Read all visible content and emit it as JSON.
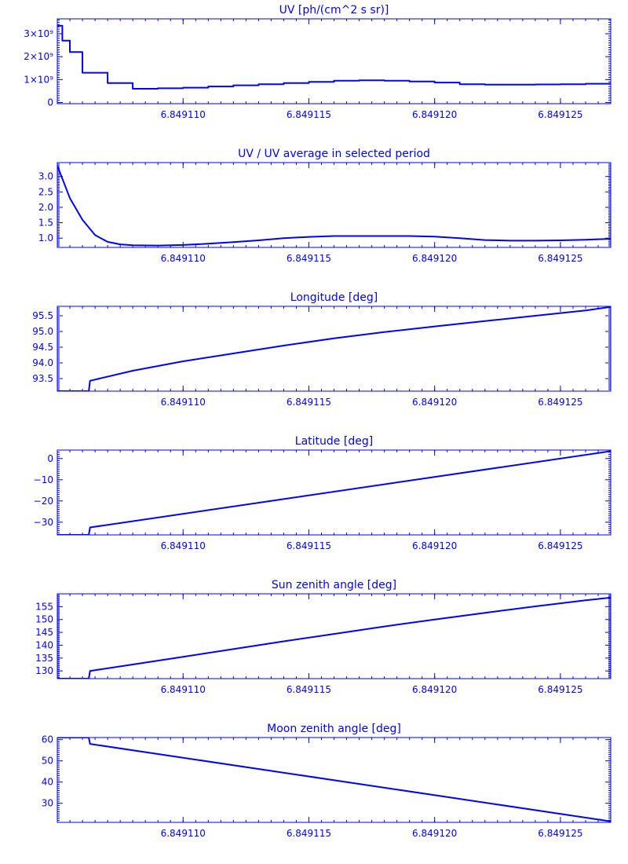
{
  "colors": {
    "line": "#0000ff",
    "background": "#ffffff"
  },
  "chart_data": [
    {
      "type": "line",
      "title": "UV [ph/(cm^2 s sr)]",
      "xlabel": "",
      "ylabel": "",
      "xlim": [
        6.849105,
        6.849127
      ],
      "ylim": [
        -50000000,
        3650000000
      ],
      "x_ticks": [
        6.84911,
        6.849115,
        6.84912,
        6.849125
      ],
      "x_tick_labels": [
        "6.849110",
        "6.849115",
        "6.849120",
        "6.849125"
      ],
      "y_ticks": [
        0,
        1000000000,
        2000000000,
        3000000000
      ],
      "y_tick_labels": [
        "0",
        "1×10⁹",
        "2×10⁹",
        "3×10⁹"
      ],
      "step": true,
      "grid": false,
      "series": [
        {
          "x": [
            6.849105,
            6.8491052,
            6.8491055,
            6.849106,
            6.849107,
            6.849108,
            6.849109,
            6.84911,
            6.849111,
            6.849112,
            6.849113,
            6.849114,
            6.849115,
            6.849116,
            6.849117,
            6.849118,
            6.849119,
            6.84912,
            6.849121,
            6.849122,
            6.849123,
            6.849124,
            6.849125,
            6.849126,
            6.849127
          ],
          "y": [
            3350000000,
            2700000000,
            2200000000,
            1300000000,
            850000000,
            600000000,
            620000000,
            650000000,
            700000000,
            750000000,
            800000000,
            850000000,
            900000000,
            950000000,
            970000000,
            950000000,
            920000000,
            870000000,
            800000000,
            780000000,
            780000000,
            790000000,
            800000000,
            820000000,
            850000000
          ]
        }
      ]
    },
    {
      "type": "line",
      "title": "UV / UV average in selected period",
      "xlabel": "",
      "ylabel": "",
      "xlim": [
        6.849105,
        6.849127
      ],
      "ylim": [
        0.7,
        3.45
      ],
      "x_ticks": [
        6.84911,
        6.849115,
        6.84912,
        6.849125
      ],
      "x_tick_labels": [
        "6.849110",
        "6.849115",
        "6.849120",
        "6.849125"
      ],
      "y_ticks": [
        1.0,
        1.5,
        2.0,
        2.5,
        3.0
      ],
      "y_tick_labels": [
        "1.0",
        "1.5",
        "2.0",
        "2.5",
        "3.0"
      ],
      "grid": false,
      "series": [
        {
          "x": [
            6.849105,
            6.8491055,
            6.849106,
            6.8491065,
            6.849107,
            6.8491075,
            6.849108,
            6.849109,
            6.84911,
            6.849111,
            6.849112,
            6.849113,
            6.849114,
            6.849115,
            6.849116,
            6.849117,
            6.849118,
            6.849119,
            6.84912,
            6.849121,
            6.849122,
            6.849123,
            6.849124,
            6.849125,
            6.849126,
            6.849127
          ],
          "y": [
            3.35,
            2.3,
            1.6,
            1.1,
            0.88,
            0.8,
            0.77,
            0.76,
            0.78,
            0.82,
            0.87,
            0.93,
            1.0,
            1.04,
            1.07,
            1.07,
            1.07,
            1.07,
            1.05,
            1.0,
            0.94,
            0.92,
            0.92,
            0.93,
            0.95,
            0.98
          ]
        }
      ]
    },
    {
      "type": "line",
      "title": "Longitude [deg]",
      "xlabel": "",
      "ylabel": "",
      "xlim": [
        6.849105,
        6.849127
      ],
      "ylim": [
        93.1,
        95.8
      ],
      "x_ticks": [
        6.84911,
        6.849115,
        6.84912,
        6.849125
      ],
      "x_tick_labels": [
        "6.849110",
        "6.849115",
        "6.849120",
        "6.849125"
      ],
      "y_ticks": [
        93.5,
        94.0,
        94.5,
        95.0,
        95.5
      ],
      "y_tick_labels": [
        "93.5",
        "94.0",
        "94.5",
        "95.0",
        "95.5"
      ],
      "grid": false,
      "series": [
        {
          "x": [
            6.849105,
            6.84910625,
            6.8491063,
            6.849108,
            6.84911,
            6.849112,
            6.849114,
            6.849116,
            6.849118,
            6.84912,
            6.849122,
            6.849124,
            6.849126,
            6.849127
          ],
          "y": [
            93.1,
            93.1,
            93.43,
            93.75,
            94.05,
            94.3,
            94.55,
            94.78,
            94.98,
            95.16,
            95.33,
            95.5,
            95.67,
            95.78
          ]
        }
      ]
    },
    {
      "type": "line",
      "title": "Latitude [deg]",
      "xlabel": "",
      "ylabel": "",
      "xlim": [
        6.849105,
        6.849127
      ],
      "ylim": [
        -36,
        4
      ],
      "x_ticks": [
        6.84911,
        6.849115,
        6.84912,
        6.849125
      ],
      "x_tick_labels": [
        "6.849110",
        "6.849115",
        "6.849120",
        "6.849125"
      ],
      "y_ticks": [
        -30,
        -20,
        -10,
        0
      ],
      "y_tick_labels": [
        "−30",
        "−20",
        "−10",
        "0"
      ],
      "grid": false,
      "series": [
        {
          "x": [
            6.849105,
            6.84910625,
            6.8491063,
            6.849127
          ],
          "y": [
            -36,
            -36,
            -32.5,
            3.5
          ]
        }
      ]
    },
    {
      "type": "line",
      "title": "Sun zenith angle [deg]",
      "xlabel": "",
      "ylabel": "",
      "xlim": [
        6.849105,
        6.849127
      ],
      "ylim": [
        127,
        160
      ],
      "x_ticks": [
        6.84911,
        6.849115,
        6.84912,
        6.849125
      ],
      "x_tick_labels": [
        "6.849110",
        "6.849115",
        "6.849120",
        "6.849125"
      ],
      "y_ticks": [
        130,
        135,
        140,
        145,
        150,
        155
      ],
      "y_tick_labels": [
        "130",
        "135",
        "140",
        "145",
        "150",
        "155"
      ],
      "grid": false,
      "series": [
        {
          "x": [
            6.849105,
            6.84910625,
            6.8491063,
            6.849108,
            6.84911,
            6.849112,
            6.849114,
            6.849116,
            6.849118,
            6.84912,
            6.849122,
            6.849124,
            6.849126,
            6.849127
          ],
          "y": [
            127,
            127,
            130,
            132.5,
            135.5,
            138.5,
            141.5,
            144.4,
            147.3,
            150.0,
            152.6,
            155.1,
            157.5,
            158.5
          ]
        }
      ]
    },
    {
      "type": "line",
      "title": "Moon zenith angle [deg]",
      "xlabel": "",
      "ylabel": "",
      "xlim": [
        6.849105,
        6.849127
      ],
      "ylim": [
        21,
        61
      ],
      "x_ticks": [
        6.84911,
        6.849115,
        6.84912,
        6.849125
      ],
      "x_tick_labels": [
        "6.849110",
        "6.849115",
        "6.849120",
        "6.849125"
      ],
      "y_ticks": [
        30,
        40,
        50,
        60
      ],
      "y_tick_labels": [
        "30",
        "40",
        "50",
        "60"
      ],
      "grid": false,
      "series": [
        {
          "x": [
            6.849105,
            6.84910625,
            6.8491063,
            6.849127
          ],
          "y": [
            61,
            61,
            58,
            21.5
          ]
        }
      ]
    }
  ]
}
